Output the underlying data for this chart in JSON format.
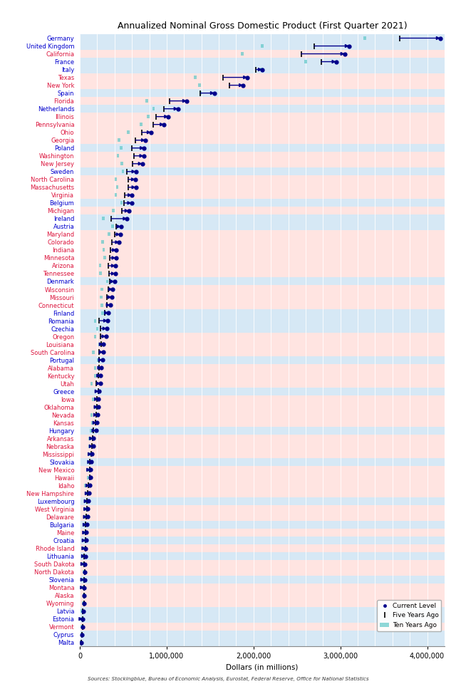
{
  "title": "Annualized Nominal Gross Domestic Product (First Quarter 2021)",
  "xlabel": "Dollars (in millions)",
  "source": "Sources: Stockingblue, Bureau of Economic Analysis, Eurostat, Federal Reserve, Office for National Statistics",
  "xlim": [
    0,
    4200000
  ],
  "xticks": [
    0,
    1000000,
    2000000,
    3000000,
    4000000
  ],
  "xticklabels": [
    "0",
    "1,000,000",
    "2,000,000",
    "3,000,000",
    "4,000,000"
  ],
  "entities": [
    {
      "name": "Germany",
      "eu": true,
      "current": 4150000,
      "five": 3680000,
      "ten": 3280000
    },
    {
      "name": "United Kingdom",
      "eu": true,
      "current": 3100000,
      "five": 2700000,
      "ten": 2100000
    },
    {
      "name": "California",
      "eu": false,
      "current": 3050000,
      "five": 2550000,
      "ten": 1870000
    },
    {
      "name": "France",
      "eu": true,
      "current": 2950000,
      "five": 2780000,
      "ten": 2600000
    },
    {
      "name": "Italy",
      "eu": true,
      "current": 2100000,
      "five": 2030000,
      "ten": 2090000
    },
    {
      "name": "Texas",
      "eu": false,
      "current": 1930000,
      "five": 1650000,
      "ten": 1330000
    },
    {
      "name": "New York",
      "eu": false,
      "current": 1880000,
      "five": 1720000,
      "ten": 1380000
    },
    {
      "name": "Spain",
      "eu": true,
      "current": 1550000,
      "five": 1390000,
      "ten": 1390000
    },
    {
      "name": "Florida",
      "eu": false,
      "current": 1230000,
      "five": 1030000,
      "ten": 770000
    },
    {
      "name": "Netherlands",
      "eu": true,
      "current": 1130000,
      "five": 970000,
      "ten": 850000
    },
    {
      "name": "Illinois",
      "eu": false,
      "current": 1020000,
      "five": 880000,
      "ten": 790000
    },
    {
      "name": "Pennsylvania",
      "eu": false,
      "current": 970000,
      "five": 845000,
      "ten": 705000
    },
    {
      "name": "Ohio",
      "eu": false,
      "current": 820000,
      "five": 715000,
      "ten": 560000
    },
    {
      "name": "Georgia",
      "eu": false,
      "current": 755000,
      "five": 640000,
      "ten": 450000
    },
    {
      "name": "Poland",
      "eu": true,
      "current": 740000,
      "five": 595000,
      "ten": 475000
    },
    {
      "name": "Washington",
      "eu": false,
      "current": 735000,
      "five": 620000,
      "ten": 440000
    },
    {
      "name": "New Jersey",
      "eu": false,
      "current": 720000,
      "five": 605000,
      "ten": 485000
    },
    {
      "name": "Sweden",
      "eu": true,
      "current": 645000,
      "five": 540000,
      "ten": 495000
    },
    {
      "name": "North Carolina",
      "eu": false,
      "current": 640000,
      "five": 555000,
      "ten": 415000
    },
    {
      "name": "Massachusetts",
      "eu": false,
      "current": 645000,
      "five": 555000,
      "ten": 430000
    },
    {
      "name": "Virginia",
      "eu": false,
      "current": 600000,
      "five": 520000,
      "ten": 415000
    },
    {
      "name": "Belgium",
      "eu": true,
      "current": 595000,
      "five": 510000,
      "ten": 480000
    },
    {
      "name": "Michigan",
      "eu": false,
      "current": 565000,
      "five": 485000,
      "ten": 385000
    },
    {
      "name": "Ireland",
      "eu": true,
      "current": 545000,
      "five": 360000,
      "ten": 270000
    },
    {
      "name": "Austria",
      "eu": true,
      "current": 475000,
      "five": 415000,
      "ten": 375000
    },
    {
      "name": "Maryland",
      "eu": false,
      "current": 465000,
      "five": 405000,
      "ten": 335000
    },
    {
      "name": "Colorado",
      "eu": false,
      "current": 455000,
      "five": 370000,
      "ten": 265000
    },
    {
      "name": "Indiana",
      "eu": false,
      "current": 420000,
      "five": 355000,
      "ten": 275000
    },
    {
      "name": "Minnesota",
      "eu": false,
      "current": 415000,
      "five": 345000,
      "ten": 285000
    },
    {
      "name": "Arizona",
      "eu": false,
      "current": 410000,
      "five": 325000,
      "ten": 235000
    },
    {
      "name": "Tennessee",
      "eu": false,
      "current": 410000,
      "five": 335000,
      "ten": 238000
    },
    {
      "name": "Denmark",
      "eu": true,
      "current": 400000,
      "five": 345000,
      "ten": 315000
    },
    {
      "name": "Wisconsin",
      "eu": false,
      "current": 380000,
      "five": 325000,
      "ten": 255000
    },
    {
      "name": "Missouri",
      "eu": false,
      "current": 368000,
      "five": 308000,
      "ten": 245000
    },
    {
      "name": "Connecticut",
      "eu": false,
      "current": 350000,
      "five": 310000,
      "ten": 255000
    },
    {
      "name": "Finland",
      "eu": true,
      "current": 330000,
      "five": 285000,
      "ten": 265000
    },
    {
      "name": "Romania",
      "eu": true,
      "current": 320000,
      "five": 225000,
      "ten": 175000
    },
    {
      "name": "Czechia",
      "eu": true,
      "current": 310000,
      "five": 240000,
      "ten": 200000
    },
    {
      "name": "Oregon",
      "eu": false,
      "current": 300000,
      "five": 238000,
      "ten": 175000
    },
    {
      "name": "Louisiana",
      "eu": false,
      "current": 270000,
      "five": 250000,
      "ten": 225000
    },
    {
      "name": "South Carolina",
      "eu": false,
      "current": 270000,
      "five": 220000,
      "ten": 155000
    },
    {
      "name": "Portugal",
      "eu": true,
      "current": 260000,
      "five": 220000,
      "ten": 215000
    },
    {
      "name": "Alabama",
      "eu": false,
      "current": 250000,
      "five": 220000,
      "ten": 175000
    },
    {
      "name": "Kentucky",
      "eu": false,
      "current": 240000,
      "five": 210000,
      "ten": 175000
    },
    {
      "name": "Utah",
      "eu": false,
      "current": 240000,
      "five": 190000,
      "ten": 135000
    },
    {
      "name": "Greece",
      "eu": true,
      "current": 220000,
      "five": 210000,
      "ten": 235000
    },
    {
      "name": "Iowa",
      "eu": false,
      "current": 215000,
      "five": 195000,
      "ten": 155000
    },
    {
      "name": "Oklahoma",
      "eu": false,
      "current": 210000,
      "five": 195000,
      "ten": 180000
    },
    {
      "name": "Nevada",
      "eu": false,
      "current": 205000,
      "five": 185000,
      "ten": 135000
    },
    {
      "name": "Kansas",
      "eu": false,
      "current": 195000,
      "five": 178000,
      "ten": 150000
    },
    {
      "name": "Hungary",
      "eu": true,
      "current": 185000,
      "five": 155000,
      "ten": 128000
    },
    {
      "name": "Arkansas",
      "eu": false,
      "current": 158000,
      "five": 145000,
      "ten": 115000
    },
    {
      "name": "Nebraska",
      "eu": false,
      "current": 155000,
      "five": 140000,
      "ten": 112000
    },
    {
      "name": "Mississippi",
      "eu": false,
      "current": 140000,
      "five": 130000,
      "ten": 107000
    },
    {
      "name": "Slovakia",
      "eu": true,
      "current": 135000,
      "five": 115000,
      "ten": 95000
    },
    {
      "name": "New Mexico",
      "eu": false,
      "current": 125000,
      "five": 115000,
      "ten": 96000
    },
    {
      "name": "Hawaii",
      "eu": false,
      "current": 120000,
      "five": 115000,
      "ten": 96000
    },
    {
      "name": "Idaho",
      "eu": false,
      "current": 115000,
      "five": 96000,
      "ten": 67000
    },
    {
      "name": "New Hampshire",
      "eu": false,
      "current": 106000,
      "five": 94000,
      "ten": 72000
    },
    {
      "name": "Luxembourg",
      "eu": true,
      "current": 96000,
      "five": 80000,
      "ten": 62000
    },
    {
      "name": "West Virginia",
      "eu": false,
      "current": 92000,
      "five": 84000,
      "ten": 72000
    },
    {
      "name": "Delaware",
      "eu": false,
      "current": 87000,
      "five": 77000,
      "ten": 63000
    },
    {
      "name": "Bulgaria",
      "eu": true,
      "current": 82000,
      "five": 62000,
      "ten": 52000
    },
    {
      "name": "Maine",
      "eu": false,
      "current": 77000,
      "five": 69000,
      "ten": 56000
    },
    {
      "name": "Croatia",
      "eu": true,
      "current": 72000,
      "five": 62000,
      "ten": 62000
    },
    {
      "name": "Rhode Island",
      "eu": false,
      "current": 69000,
      "five": 62000,
      "ten": 50000
    },
    {
      "name": "Lithuania",
      "eu": true,
      "current": 65000,
      "five": 50000,
      "ten": 40000
    },
    {
      "name": "South Dakota",
      "eu": false,
      "current": 57000,
      "five": 50000,
      "ten": 40000
    },
    {
      "name": "North Dakota",
      "eu": false,
      "current": 55000,
      "five": 55000,
      "ten": 48000
    },
    {
      "name": "Slovenia",
      "eu": true,
      "current": 55000,
      "five": 48000,
      "ten": 43000
    },
    {
      "name": "Montana",
      "eu": false,
      "current": 52000,
      "five": 46000,
      "ten": 36000
    },
    {
      "name": "Alaska",
      "eu": false,
      "current": 50000,
      "five": 52000,
      "ten": 50000
    },
    {
      "name": "Wyoming",
      "eu": false,
      "current": 48000,
      "five": 46000,
      "ten": 43000
    },
    {
      "name": "Latvia",
      "eu": true,
      "current": 38000,
      "five": 33000,
      "ten": 27000
    },
    {
      "name": "Estonia",
      "eu": true,
      "current": 36000,
      "five": 30000,
      "ten": 24000
    },
    {
      "name": "Vermont",
      "eu": false,
      "current": 33000,
      "five": 30000,
      "ten": 26000
    },
    {
      "name": "Cyprus",
      "eu": true,
      "current": 28000,
      "five": 24000,
      "ten": 21000
    },
    {
      "name": "Malta",
      "eu": true,
      "current": 20000,
      "five": 17000,
      "ten": 13000
    }
  ],
  "eu_color": "#0000CD",
  "us_color": "#DC143C",
  "current_color": "#00008B",
  "five_color": "#000000",
  "ten_color": "#5FC8C8",
  "ten_bg_color": "#90D8D8",
  "row_colors_eu": "#D6E8F5",
  "row_colors_us": "#FFE4E1",
  "figsize": [
    6.4,
    9.6
  ]
}
